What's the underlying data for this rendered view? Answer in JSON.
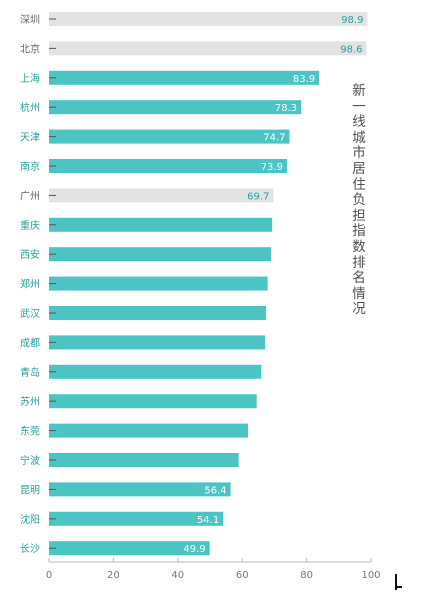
{
  "chart_data": {
    "type": "bar",
    "orientation": "horizontal",
    "title": "新一线城市居住负担指数排名情况",
    "categories": [
      "深圳",
      "北京",
      "上海",
      "杭州",
      "天津",
      "南京",
      "广州",
      "重庆",
      "西安",
      "郑州",
      "武汉",
      "成都",
      "青岛",
      "苏州",
      "东莞",
      "宁波",
      "昆明",
      "沈阳",
      "长沙"
    ],
    "values": [
      98.9,
      98.6,
      83.9,
      78.3,
      74.7,
      73.9,
      69.7,
      69.3,
      69.0,
      67.9,
      67.4,
      67.1,
      65.9,
      64.5,
      61.8,
      58.9,
      56.4,
      54.1,
      49.9
    ],
    "value_labels": [
      "98.9",
      "98.6",
      "83.9",
      "78.3",
      "74.7",
      "73.9",
      "69.7",
      "",
      "",
      "",
      "",
      "",
      "",
      "",
      "",
      "",
      "56.4",
      "54.1",
      "49.9"
    ],
    "highlight": [
      false,
      false,
      true,
      true,
      true,
      true,
      false,
      true,
      true,
      true,
      true,
      true,
      true,
      true,
      true,
      true,
      true,
      true,
      true
    ],
    "xlim": [
      0,
      100
    ],
    "xticks": [
      "0",
      "20",
      "40",
      "60",
      "80",
      "100"
    ],
    "colors": {
      "bar": "#4dc4c4",
      "muted": "#e3e3e3",
      "muted_text": "#666666",
      "highlight_text": "#2a9d9d",
      "axis": "#bbbbbb"
    }
  }
}
